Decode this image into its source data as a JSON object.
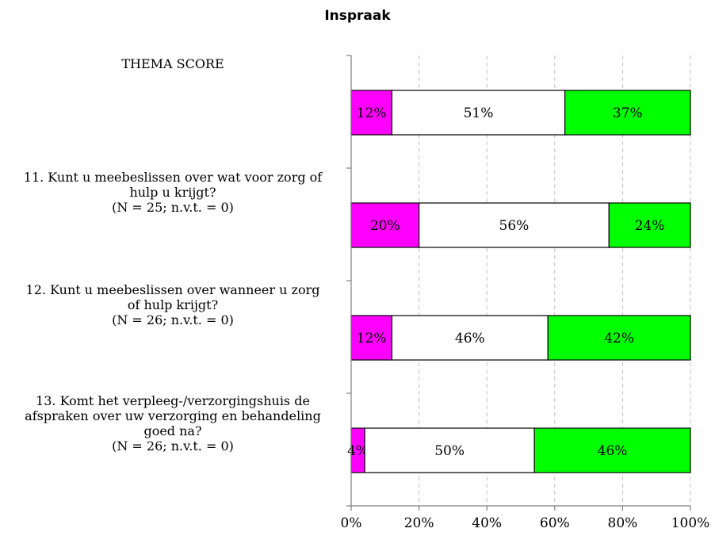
{
  "chart_data": {
    "type": "bar",
    "orientation": "horizontal",
    "stacked": true,
    "title": "Inspraak",
    "categories": [
      "THEMA SCORE",
      "11. Kunt u meebeslissen over wat voor zorg of hulp u krijgt? (N = 25; n.v.t. = 0)",
      "12. Kunt u meebeslissen over wanneer u zorg of hulp krijgt? (N = 26; n.v.t. = 0)",
      "13. Komt het verpleeg-/verzorgingshuis de afspraken over uw verzorging en behandeling goed na? (N = 26; n.v.t. = 0)"
    ],
    "category_lines": [
      [
        "THEMA SCORE"
      ],
      [
        "11. Kunt u meebeslissen over wat voor zorg of",
        "hulp u krijgt?",
        "(N = 25; n.v.t. = 0)"
      ],
      [
        "12. Kunt u meebeslissen over wanneer u zorg",
        "of hulp krijgt?",
        "(N = 26; n.v.t. = 0)"
      ],
      [
        "13. Komt het verpleeg-/verzorgingshuis de",
        "afspraken over uw verzorging en behandeling",
        "goed na?",
        "(N = 26; n.v.t. = 0)"
      ]
    ],
    "series": [
      {
        "color": "#ff00ff",
        "values": [
          12,
          20,
          12,
          4
        ],
        "labels": [
          "12%",
          "20%",
          "12%",
          "4%"
        ]
      },
      {
        "color": "#ffffff",
        "values": [
          51,
          56,
          46,
          50
        ],
        "labels": [
          "51%",
          "56%",
          "46%",
          "50%"
        ]
      },
      {
        "color": "#00ff00",
        "values": [
          37,
          24,
          42,
          46
        ],
        "labels": [
          "37%",
          "24%",
          "42%",
          "46%"
        ]
      }
    ],
    "xlim": [
      0,
      100
    ],
    "xticks": [
      "0%",
      "20%",
      "40%",
      "60%",
      "80%",
      "100%"
    ],
    "grid": "vertical dashed",
    "legend": "none"
  }
}
